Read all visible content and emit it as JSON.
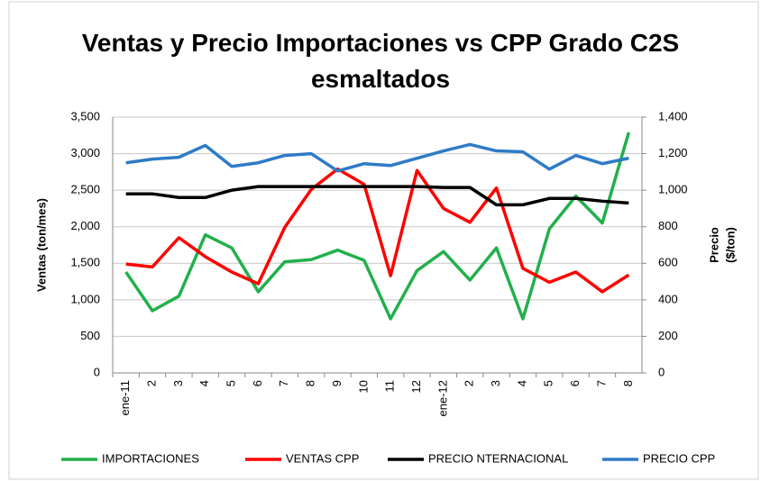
{
  "chart_data": {
    "type": "line",
    "title": "Ventas y Precio Importaciones vs CPP Grado C2S esmaltados",
    "ylabel": "Ventas (ton/mes)",
    "y2label": [
      "Precio",
      "($/ton)"
    ],
    "categories": [
      "ene-11",
      "2",
      "3",
      "4",
      "5",
      "6",
      "7",
      "8",
      "9",
      "10",
      "11",
      "12",
      "ene-12",
      "2",
      "3",
      "4",
      "5",
      "6",
      "7",
      "8"
    ],
    "series": [
      {
        "name": "IMPORTACIONES",
        "color": "#22b04b",
        "values": [
          1380,
          850,
          1050,
          1890,
          1710,
          1110,
          1520,
          1550,
          1680,
          1540,
          740,
          1400,
          1660,
          1270,
          1710,
          740,
          1970,
          2420,
          2050,
          3290
        ]
      },
      {
        "name": "VENTAS CPP",
        "color": "#ff0000",
        "values": [
          1490,
          1450,
          1850,
          1590,
          1380,
          1220,
          1990,
          2510,
          2790,
          2580,
          1330,
          2770,
          2250,
          2060,
          2530,
          1430,
          1240,
          1380,
          1110,
          1340
        ]
      },
      {
        "name": "PRECIO NTERNACIONAL",
        "color": "#000000",
        "axis": "y2",
        "values": [
          980,
          980,
          960,
          960,
          1000,
          1020,
          1020,
          1020,
          1020,
          1020,
          1020,
          1020,
          1015,
          1015,
          920,
          920,
          955,
          955,
          940,
          930
        ]
      },
      {
        "name": "PRECIO CPP",
        "color": "#2e7bc6",
        "axis": "y2",
        "values": [
          1150,
          1170,
          1180,
          1245,
          1130,
          1150,
          1190,
          1200,
          1105,
          1145,
          1135,
          1175,
          1215,
          1250,
          1215,
          1210,
          1115,
          1190,
          1145,
          1175
        ]
      }
    ],
    "ylim": [
      0,
      3500
    ],
    "yticks": [
      0,
      500,
      {
        "value": 1000,
        "label": "1,000"
      },
      {
        "value": 1500,
        "label": "1,500"
      },
      {
        "value": 2000,
        "label": "2,000"
      },
      {
        "value": 2500,
        "label": "2,500"
      },
      {
        "value": 3000,
        "label": "3,000"
      },
      {
        "value": 3500,
        "label": "3,500"
      }
    ],
    "y2lim": [
      0,
      1400
    ],
    "y2ticks": [
      0,
      200,
      400,
      600,
      800,
      {
        "value": 1000,
        "label": "1,000"
      },
      {
        "value": 1200,
        "label": "1,200"
      },
      {
        "value": 1400,
        "label": "1,400"
      }
    ],
    "grid": true,
    "legend": "bottom"
  }
}
